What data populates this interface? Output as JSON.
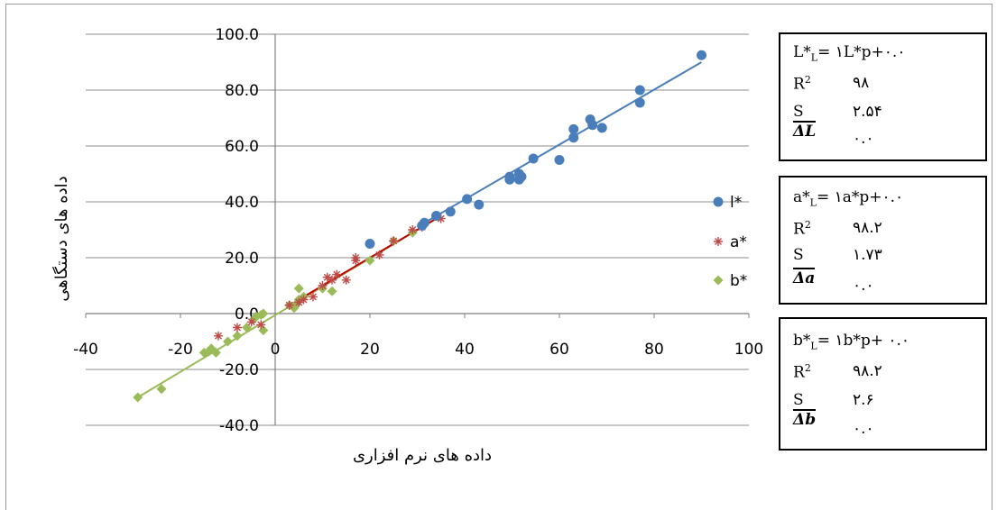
{
  "chart_data": {
    "type": "scatter",
    "xlabel": "داده های نرم افزاری",
    "ylabel": "داده های دستگاهی",
    "xlim": [
      -40,
      100
    ],
    "ylim": [
      -40,
      100
    ],
    "xticks": [
      "-40",
      "-20",
      "0",
      "20",
      "40",
      "60",
      "80",
      "100"
    ],
    "yticks": [
      "-40.0",
      "-20.0",
      "0.0",
      "20.0",
      "40.0",
      "60.0",
      "80.0",
      "100.0"
    ],
    "grid": "horizontal",
    "legend_position": "right",
    "series": [
      {
        "name": "l*",
        "color": "#4a7ebb",
        "marker": "circle",
        "trend": [
          [
            30,
            31
          ],
          [
            90,
            90
          ]
        ],
        "points": [
          [
            20,
            25
          ],
          [
            31,
            31.5
          ],
          [
            31.5,
            32.5
          ],
          [
            34,
            35
          ],
          [
            37,
            36.5
          ],
          [
            40.5,
            41
          ],
          [
            43,
            39
          ],
          [
            49.5,
            48
          ],
          [
            49.5,
            49
          ],
          [
            51.5,
            48
          ],
          [
            51.5,
            50
          ],
          [
            52,
            49
          ],
          [
            54.5,
            55.5
          ],
          [
            60,
            55
          ],
          [
            63,
            63
          ],
          [
            63,
            66
          ],
          [
            66.5,
            69.5
          ],
          [
            67,
            67.5
          ],
          [
            69,
            66.5
          ],
          [
            77,
            75.5
          ],
          [
            77,
            80
          ],
          [
            90,
            92.5
          ]
        ]
      },
      {
        "name": "a*",
        "color": "#be4b48",
        "marker": "star",
        "trend": [
          [
            3,
            3
          ],
          [
            35,
            35
          ]
        ],
        "points": [
          [
            -12,
            -8
          ],
          [
            -8,
            -5
          ],
          [
            -5,
            -3
          ],
          [
            -3,
            -4
          ],
          [
            3,
            3
          ],
          [
            5,
            4
          ],
          [
            6,
            5
          ],
          [
            8,
            6
          ],
          [
            10,
            10
          ],
          [
            11,
            13
          ],
          [
            12,
            12
          ],
          [
            13,
            14
          ],
          [
            15,
            12
          ],
          [
            17,
            19
          ],
          [
            17,
            20
          ],
          [
            22,
            21
          ],
          [
            25,
            26
          ],
          [
            29,
            30
          ],
          [
            31,
            31
          ],
          [
            35,
            34
          ]
        ]
      },
      {
        "name": "b*",
        "color": "#9bbb59",
        "marker": "diamond",
        "trend": [
          [
            -29,
            -30
          ],
          [
            35,
            35
          ]
        ],
        "points": [
          [
            -29,
            -30
          ],
          [
            -24,
            -27
          ],
          [
            -15,
            -14
          ],
          [
            -14,
            -13.5
          ],
          [
            -13.5,
            -12.5
          ],
          [
            -12.5,
            -14
          ],
          [
            -10,
            -10
          ],
          [
            -8,
            -8
          ],
          [
            -6,
            -5
          ],
          [
            -4.5,
            -2
          ],
          [
            -4,
            -1
          ],
          [
            -3,
            -0.5
          ],
          [
            -2.5,
            0
          ],
          [
            -2.5,
            -6
          ],
          [
            3,
            3
          ],
          [
            4,
            2
          ],
          [
            4.5,
            3.5
          ],
          [
            5,
            9
          ],
          [
            5,
            5
          ],
          [
            6,
            6
          ],
          [
            10,
            9
          ],
          [
            12,
            8
          ],
          [
            20,
            19
          ],
          [
            25,
            26
          ],
          [
            29,
            29
          ]
        ]
      }
    ],
    "equations": [
      {
        "formula_main": "L*",
        "formula_sub": "L",
        "formula_rest": "= ۱L*p+۰.۰",
        "r2_label": "R",
        "r2_value": "۹۸",
        "s_label": "S",
        "s_value": "۲.۵۴",
        "delta_label": "ΔL",
        "delta_value": "۰.۰"
      },
      {
        "formula_main": "a*",
        "formula_sub": "L",
        "formula_rest": "= ۱a*p+۰.۰",
        "r2_label": "R",
        "r2_value": "۹۸.۲",
        "s_label": "S",
        "s_value": "۱.۷۳",
        "delta_label": "Δa",
        "delta_value": "۰.۰"
      },
      {
        "formula_main": "b*",
        "formula_sub": "L",
        "formula_rest": "= ۱b*p+ ۰.۰",
        "r2_label": "R",
        "r2_value": "۹۸.۲",
        "s_label": "S",
        "s_value": "۲.۶",
        "delta_label": "Δb",
        "delta_value": "۰.۰"
      }
    ]
  }
}
